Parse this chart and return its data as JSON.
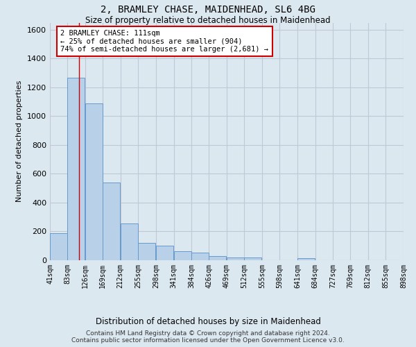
{
  "title": "2, BRAMLEY CHASE, MAIDENHEAD, SL6 4BG",
  "subtitle": "Size of property relative to detached houses in Maidenhead",
  "xlabel": "Distribution of detached houses by size in Maidenhead",
  "ylabel": "Number of detached properties",
  "footer_line1": "Contains HM Land Registry data © Crown copyright and database right 2024.",
  "footer_line2": "Contains public sector information licensed under the Open Government Licence v3.0.",
  "bar_color": "#b8d0e8",
  "bar_edge_color": "#6699cc",
  "background_color": "#dce8f0",
  "plot_bg_color": "#dce8f0",
  "grid_color": "#c0c8d8",
  "annotation_text": "2 BRAMLEY CHASE: 111sqm\n← 25% of detached houses are smaller (904)\n74% of semi-detached houses are larger (2,681) →",
  "property_size": 111,
  "red_line_color": "#cc0000",
  "annotation_box_color": "#ffffff",
  "annotation_box_edge": "#cc0000",
  "bin_edges": [
    41,
    83,
    126,
    169,
    212,
    255,
    298,
    341,
    384,
    426,
    469,
    512,
    555,
    598,
    641,
    684,
    727,
    769,
    812,
    855,
    898
  ],
  "bin_labels": [
    "41sqm",
    "83sqm",
    "126sqm",
    "169sqm",
    "212sqm",
    "255sqm",
    "298sqm",
    "341sqm",
    "384sqm",
    "426sqm",
    "469sqm",
    "512sqm",
    "555sqm",
    "598sqm",
    "641sqm",
    "684sqm",
    "727sqm",
    "769sqm",
    "812sqm",
    "855sqm",
    "898sqm"
  ],
  "bar_heights": [
    190,
    1265,
    1090,
    540,
    255,
    120,
    100,
    65,
    55,
    30,
    20,
    20,
    0,
    0,
    15,
    0,
    0,
    0,
    0,
    0
  ],
  "ylim": [
    0,
    1650
  ],
  "yticks": [
    0,
    200,
    400,
    600,
    800,
    1000,
    1200,
    1400,
    1600
  ]
}
